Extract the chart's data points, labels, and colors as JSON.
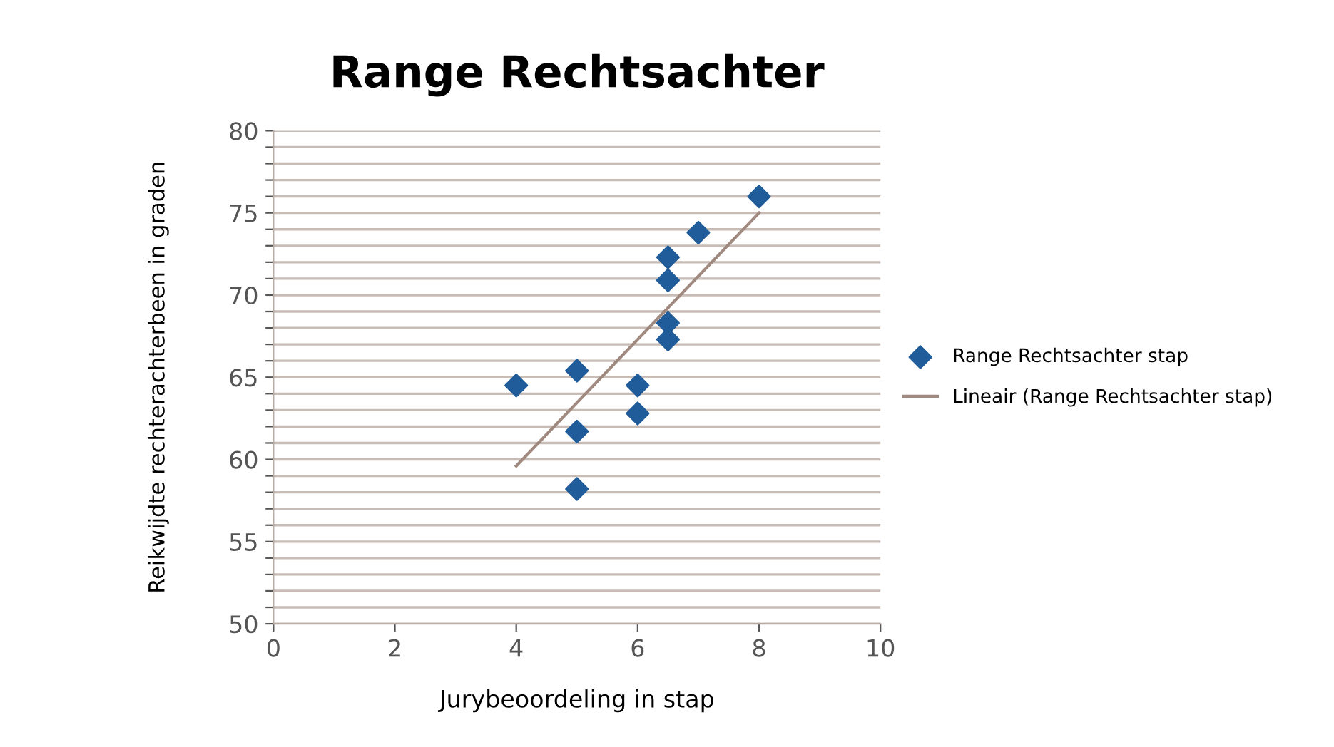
{
  "chart_data": {
    "type": "scatter",
    "title": "Range Rechtsachter",
    "xlabel": "Jurybeoordeling in stap",
    "ylabel": "Reikwijdte rechterachterbeen in graden",
    "series": [
      {
        "name": "Range Rechtsachter stap",
        "color": "#1f5c99",
        "marker": "diamond",
        "x": [
          4,
          5,
          5,
          5,
          6,
          6,
          6.5,
          6.5,
          6.5,
          6.5,
          7,
          8
        ],
        "values": [
          64.5,
          65.4,
          61.7,
          58.2,
          64.5,
          62.8,
          72.3,
          70.9,
          68.3,
          67.3,
          73.8,
          76.0
        ]
      },
      {
        "name": "Lineair (Range Rechtsachter stap)",
        "type": "line",
        "color": "#a08a80",
        "marker": "none",
        "line_style": "solid",
        "x": [
          4,
          8
        ],
        "values": [
          59.6,
          75.0
        ]
      }
    ],
    "xlim": [
      0,
      10
    ],
    "xticks": [
      0,
      2,
      4,
      6,
      8,
      10
    ],
    "ylim": [
      50,
      80
    ],
    "yticks": [
      50,
      {
        "value": 51,
        "label": null
      },
      {
        "value": 52,
        "label": null
      },
      {
        "value": 53,
        "label": null
      },
      {
        "value": 54,
        "label": null
      },
      55,
      {
        "value": 56,
        "label": null
      },
      {
        "value": 57,
        "label": null
      },
      {
        "value": 58,
        "label": null
      },
      {
        "value": 59,
        "label": null
      },
      60,
      {
        "value": 61,
        "label": null
      },
      {
        "value": 62,
        "label": null
      },
      {
        "value": 63,
        "label": null
      },
      {
        "value": 64,
        "label": null
      },
      65,
      {
        "value": 66,
        "label": null
      },
      {
        "value": 67,
        "label": null
      },
      {
        "value": 68,
        "label": null
      },
      {
        "value": 69,
        "label": null
      },
      70,
      {
        "value": 71,
        "label": null
      },
      {
        "value": 72,
        "label": null
      },
      {
        "value": 73,
        "label": null
      },
      {
        "value": 74,
        "label": null
      },
      75,
      {
        "value": 76,
        "label": null
      },
      {
        "value": 77,
        "label": null
      },
      {
        "value": 78,
        "label": null
      },
      {
        "value": 79,
        "label": null
      },
      80
    ],
    "grid": "y",
    "legend": "right"
  }
}
